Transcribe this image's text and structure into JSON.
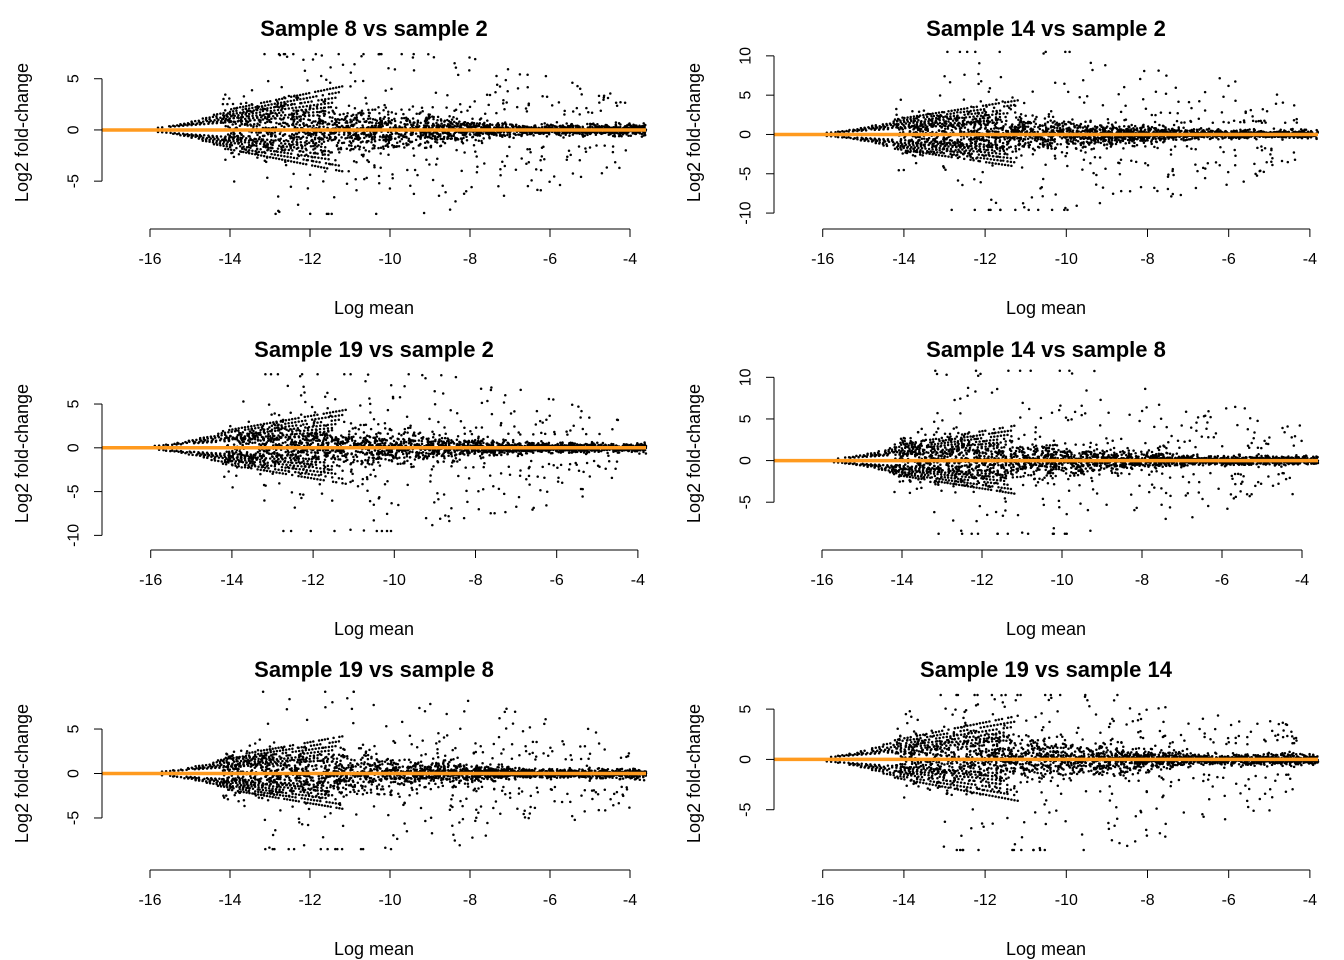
{
  "colors": {
    "points": "#000000",
    "reference_line": "#FF9A1E"
  },
  "chart_data": [
    {
      "type": "scatter",
      "title": "Sample 8 vs sample 2",
      "xlabel": "Log mean",
      "ylabel": "Log2 fold-change",
      "xlim": [
        -17.2,
        -3.6
      ],
      "ylim": [
        -8.5,
        8.0
      ],
      "xticks": [
        -16,
        -14,
        -12,
        -10,
        -8,
        -6,
        -4
      ],
      "yticks": [
        -5,
        0,
        5
      ],
      "reference_line_y": 0,
      "xmin_data": -15.9,
      "xmax_data": -4.1,
      "spread_hi": 7.4,
      "spread_lo": 8.2,
      "seed": 11
    },
    {
      "type": "scatter",
      "title": "Sample 14 vs sample 2",
      "xlabel": "Log mean",
      "ylabel": "Log2 fold-change",
      "xlim": [
        -17.2,
        -3.8
      ],
      "ylim": [
        -10.5,
        11.0
      ],
      "xticks": [
        -16,
        -14,
        -12,
        -10,
        -8,
        -6,
        -4
      ],
      "yticks": [
        -10,
        -5,
        0,
        5,
        10
      ],
      "reference_line_y": 0,
      "xmin_data": -16.0,
      "xmax_data": -4.3,
      "spread_hi": 10.5,
      "spread_lo": 9.6,
      "seed": 23
    },
    {
      "type": "scatter",
      "title": "Sample 19 vs sample 2",
      "xlabel": "Log mean",
      "ylabel": "Log2 fold-change",
      "xlim": [
        -17.2,
        -3.8
      ],
      "ylim": [
        -10.3,
        9.0
      ],
      "xticks": [
        -16,
        -14,
        -12,
        -10,
        -8,
        -6,
        -4
      ],
      "yticks": [
        -10,
        -5,
        0,
        5
      ],
      "reference_line_y": 0,
      "xmin_data": -16.0,
      "xmax_data": -4.4,
      "spread_hi": 8.4,
      "spread_lo": 9.5,
      "seed": 37
    },
    {
      "type": "scatter",
      "title": "Sample 14 vs sample 8",
      "xlabel": "Log mean",
      "ylabel": "Log2 fold-change",
      "xlim": [
        -17.2,
        -3.6
      ],
      "ylim": [
        -9.3,
        11.0
      ],
      "xticks": [
        -16,
        -14,
        -12,
        -10,
        -8,
        -6,
        -4
      ],
      "yticks": [
        -5,
        0,
        5,
        10
      ],
      "reference_line_y": 0,
      "xmin_data": -15.8,
      "xmax_data": -4.0,
      "spread_hi": 10.8,
      "spread_lo": 8.8,
      "seed": 41
    },
    {
      "type": "scatter",
      "title": "Sample 19 vs sample 8",
      "xlabel": "Log mean",
      "ylabel": "Log2 fold-change",
      "xlim": [
        -17.2,
        -3.6
      ],
      "ylim": [
        -9.5,
        9.5
      ],
      "xticks": [
        -16,
        -14,
        -12,
        -10,
        -8,
        -6,
        -4
      ],
      "yticks": [
        -5,
        0,
        5
      ],
      "reference_line_y": 0,
      "xmin_data": -15.8,
      "xmax_data": -4.0,
      "spread_hi": 9.2,
      "spread_lo": 8.5,
      "seed": 53
    },
    {
      "type": "scatter",
      "title": "Sample 19 vs sample 14",
      "xlabel": "Log mean",
      "ylabel": "Log2 fold-change",
      "xlim": [
        -17.2,
        -3.8
      ],
      "ylim": [
        -9.8,
        7.0
      ],
      "xticks": [
        -16,
        -14,
        -12,
        -10,
        -8,
        -6,
        -4
      ],
      "yticks": [
        -5,
        0,
        5
      ],
      "reference_line_y": 0,
      "xmin_data": -16.0,
      "xmax_data": -4.3,
      "spread_hi": 6.4,
      "spread_lo": 9.0,
      "seed": 67
    }
  ]
}
